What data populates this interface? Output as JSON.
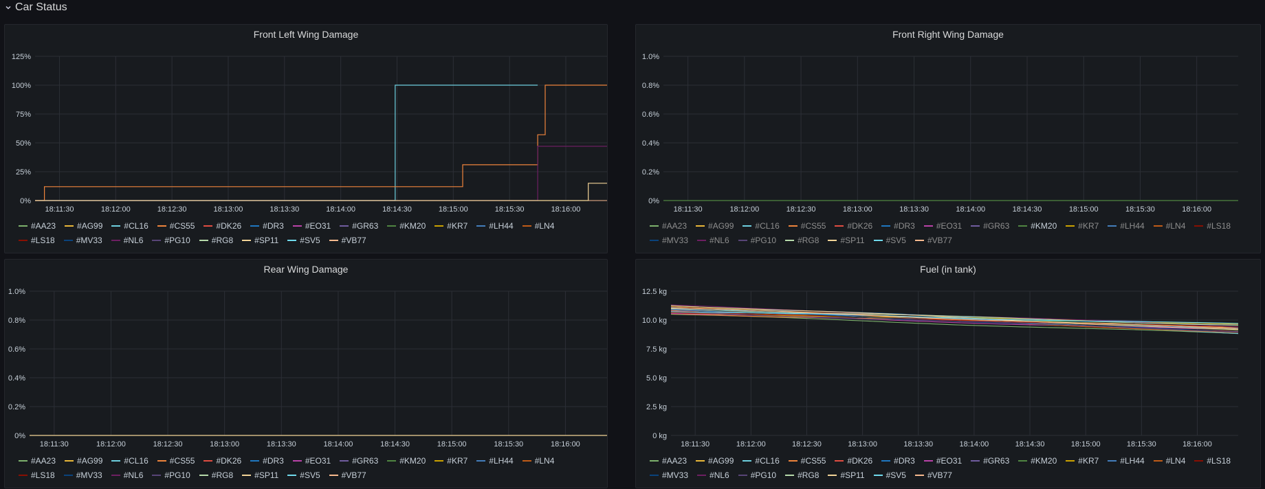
{
  "row": {
    "title": "Car Status"
  },
  "time_ticks": [
    "18:11:30",
    "18:12:00",
    "18:12:30",
    "18:13:00",
    "18:13:30",
    "18:14:00",
    "18:14:30",
    "18:15:00",
    "18:15:30",
    "18:16:00"
  ],
  "series": [
    {
      "name": "#AA23",
      "color": "#7eb26d"
    },
    {
      "name": "#AG99",
      "color": "#eab839"
    },
    {
      "name": "#CL16",
      "color": "#6ed0e0"
    },
    {
      "name": "#CS55",
      "color": "#ef843c"
    },
    {
      "name": "#DK26",
      "color": "#e24d42"
    },
    {
      "name": "#DR3",
      "color": "#1f78c1"
    },
    {
      "name": "#EO31",
      "color": "#ba43a9"
    },
    {
      "name": "#GR63",
      "color": "#705da0"
    },
    {
      "name": "#KM20",
      "color": "#508642"
    },
    {
      "name": "#KR7",
      "color": "#cca300"
    },
    {
      "name": "#LH44",
      "color": "#447ebc"
    },
    {
      "name": "#LN4",
      "color": "#c15c17"
    },
    {
      "name": "#LS18",
      "color": "#890f02"
    },
    {
      "name": "#MV33",
      "color": "#0a437c"
    },
    {
      "name": "#NL6",
      "color": "#6d1f62"
    },
    {
      "name": "#PG10",
      "color": "#584477"
    },
    {
      "name": "#RG8",
      "color": "#b7dbab"
    },
    {
      "name": "#SP11",
      "color": "#f4d598"
    },
    {
      "name": "#SV5",
      "color": "#70dbed"
    },
    {
      "name": "#VB77",
      "color": "#f9ba8f"
    }
  ],
  "panels": {
    "front_left": {
      "title": "Front Left Wing Damage",
      "chart_data": {
        "type": "line",
        "title": "Front Left Wing Damage",
        "unit": "%",
        "ylim": [
          0,
          125
        ],
        "y_ticks": [
          "0%",
          "25%",
          "50%",
          "75%",
          "100%",
          "125%"
        ],
        "x_range": [
          "18:11:17",
          "18:16:22"
        ],
        "series": [
          {
            "name": "#CL16",
            "points": [
              [
                "18:11:17",
                0
              ],
              [
                "18:14:29",
                0
              ],
              [
                "18:14:29",
                100
              ],
              [
                "18:15:45",
                100
              ]
            ]
          },
          {
            "name": "#CS55",
            "points": [
              [
                "18:11:17",
                0
              ],
              [
                "18:11:22",
                0
              ],
              [
                "18:11:22",
                12
              ],
              [
                "18:15:05",
                12
              ],
              [
                "18:15:05",
                31
              ],
              [
                "18:15:45",
                31
              ],
              [
                "18:15:45",
                57
              ],
              [
                "18:15:49",
                57
              ],
              [
                "18:15:49",
                100
              ],
              [
                "18:16:22",
                100
              ]
            ]
          },
          {
            "name": "#NL6",
            "points": [
              [
                "18:11:17",
                0
              ],
              [
                "18:15:45",
                0
              ],
              [
                "18:15:45",
                47
              ],
              [
                "18:16:22",
                47
              ]
            ]
          },
          {
            "name": "#SP11",
            "points": [
              [
                "18:11:17",
                0
              ],
              [
                "18:16:12",
                0
              ],
              [
                "18:16:12",
                15
              ],
              [
                "18:16:22",
                15
              ]
            ]
          }
        ]
      }
    },
    "front_right": {
      "title": "Front Right Wing Damage",
      "chart_data": {
        "type": "line",
        "title": "Front Right Wing Damage",
        "unit": "%",
        "ylim": [
          0,
          1.0
        ],
        "y_ticks": [
          "0%",
          "0.2%",
          "0.4%",
          "0.6%",
          "0.8%",
          "1.0%"
        ],
        "x_range": [
          "18:11:17",
          "18:16:22"
        ],
        "series": [
          {
            "name": "#KM20",
            "points": [
              [
                "18:11:17",
                0
              ],
              [
                "18:16:22",
                0
              ]
            ]
          }
        ]
      },
      "highlight": "#KM20"
    },
    "rear": {
      "title": "Rear Wing Damage",
      "chart_data": {
        "type": "line",
        "title": "Rear Wing Damage",
        "unit": "%",
        "ylim": [
          0,
          1.0
        ],
        "y_ticks": [
          "0%",
          "0.2%",
          "0.4%",
          "0.6%",
          "0.8%",
          "1.0%"
        ],
        "x_range": [
          "18:11:17",
          "18:16:22"
        ],
        "series": [
          {
            "name": "#SP11",
            "points": [
              [
                "18:11:17",
                0
              ],
              [
                "18:16:22",
                0
              ]
            ]
          }
        ]
      }
    },
    "fuel": {
      "title": "Fuel (in tank)",
      "chart_data": {
        "type": "line",
        "title": "Fuel (in tank)",
        "unit": "kg",
        "ylim": [
          0,
          12.5
        ],
        "y_ticks": [
          "0 kg",
          "2.5 kg",
          "5.0 kg",
          "7.5 kg",
          "10.0 kg",
          "12.5 kg"
        ],
        "x_range": [
          "18:11:17",
          "18:16:22"
        ],
        "start_range": [
          10.5,
          11.3
        ],
        "end_range": [
          8.8,
          9.7
        ]
      }
    }
  }
}
